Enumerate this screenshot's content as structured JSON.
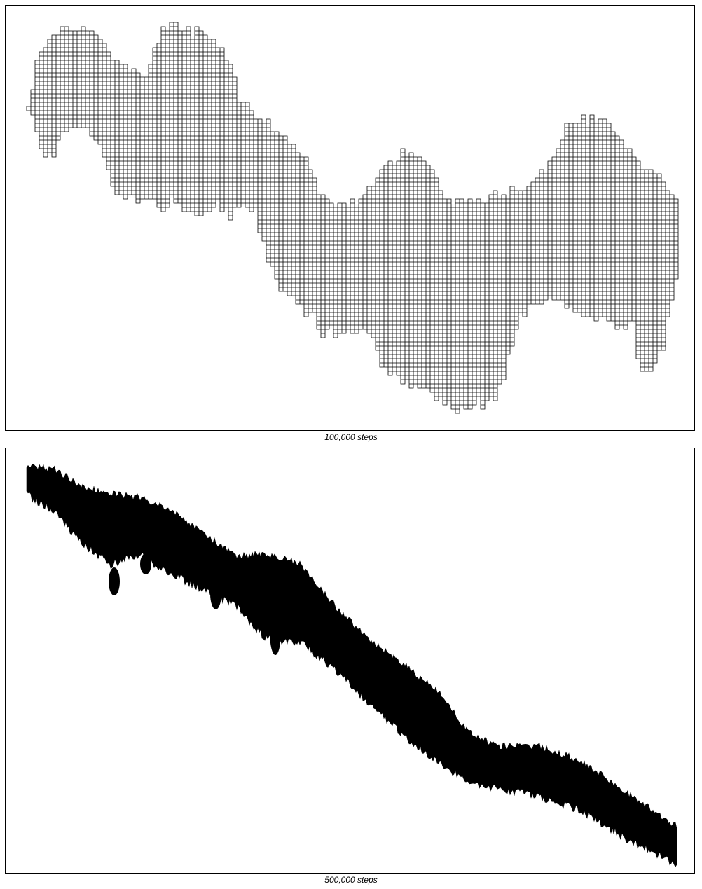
{
  "panels": [
    {
      "caption": "100,000 steps",
      "style": "grid"
    },
    {
      "caption": "500,000 steps",
      "style": "solid"
    }
  ],
  "colors": {
    "ink": "#000000",
    "background": "#ffffff"
  }
}
